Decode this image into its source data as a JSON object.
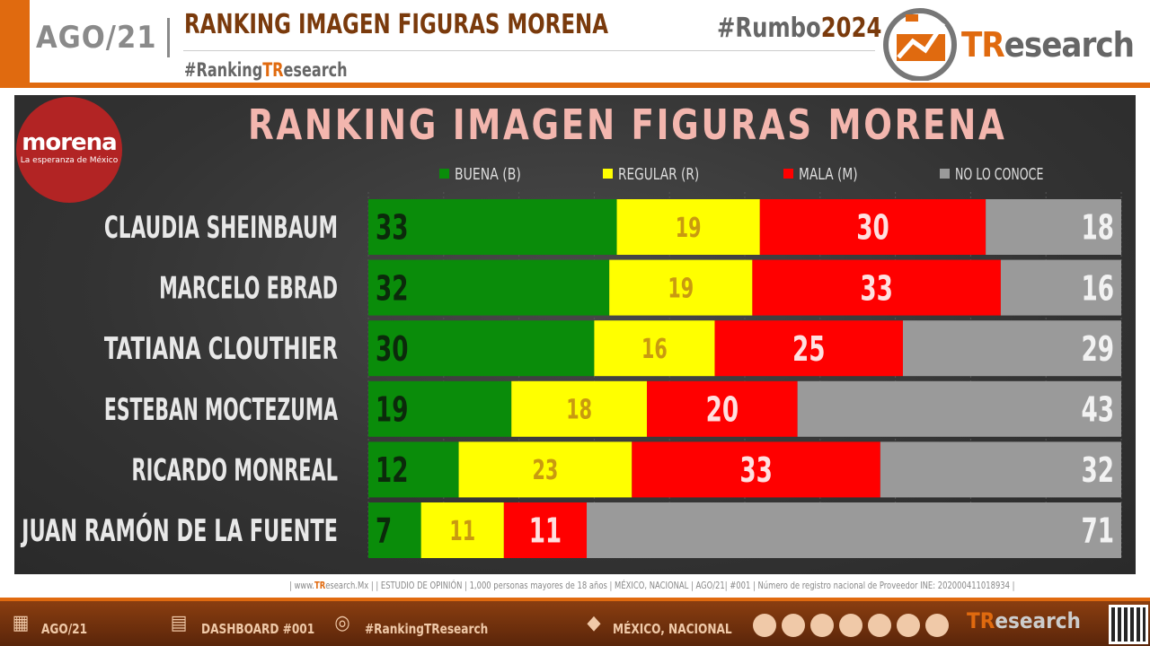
{
  "header": {
    "date": "AGO/21",
    "title": "RANKING IMAGEN FIGURAS MORENA",
    "hashtag_prefix": "#Ranking",
    "hashtag_tr": "TR",
    "hashtag_suffix": "esearch",
    "rumbo": "#Rumbo",
    "rumbo_year": "2024",
    "brand_t": "TR",
    "brand_rest": "esearch"
  },
  "badge": {
    "word": "morena",
    "tagline": "La esperanza de México"
  },
  "chart_data": {
    "type": "bar",
    "stacked": true,
    "orientation": "horizontal",
    "title": "RANKING IMAGEN FIGURAS MORENA",
    "categories": [
      "CLAUDIA SHEINBAUM",
      "MARCELO EBRAD",
      "TATIANA CLOUTHIER",
      "ESTEBAN MOCTEZUMA",
      "RICARDO MONREAL",
      "JUAN RAMÓN DE LA FUENTE"
    ],
    "series": [
      {
        "name": "BUENA (B)",
        "color": "#0a8c0a",
        "label_color": "#0b2a0b",
        "values": [
          33,
          32,
          30,
          19,
          12,
          7
        ]
      },
      {
        "name": "REGULAR (R)",
        "color": "#ffff00",
        "label_color": "#c99a10",
        "values": [
          19,
          19,
          16,
          18,
          23,
          11
        ]
      },
      {
        "name": "MALA (M)",
        "color": "#ff0000",
        "label_color": "#ffe0e0",
        "values": [
          30,
          33,
          25,
          20,
          33,
          11
        ]
      },
      {
        "name": "NO LO CONOCE",
        "color": "#9a9a9a",
        "label_color": "#f2f2f2",
        "values": [
          18,
          16,
          29,
          43,
          32,
          71
        ]
      }
    ],
    "xlim": [
      0,
      100
    ],
    "legend": "top"
  },
  "source": {
    "prefix": "| www.",
    "tr": "TR",
    "rest": "esearch.Mx  | | ESTUDIO  DE  OPINIÓN  | 1,000  personas  mayores  de  18  años  | MÉXICO,  NACIONAL  | AGO/21| #001 | Número  de  registro  nacional  de  Proveedor  INE:  202000411018934  |"
  },
  "footer": {
    "date": "AGO/21",
    "dashboard": "DASHBOARD #001",
    "hashtag": "#RankingTResearch",
    "location": "MÉXICO, NACIONAL",
    "brand_t": "TR",
    "brand_rest": "esearch"
  }
}
